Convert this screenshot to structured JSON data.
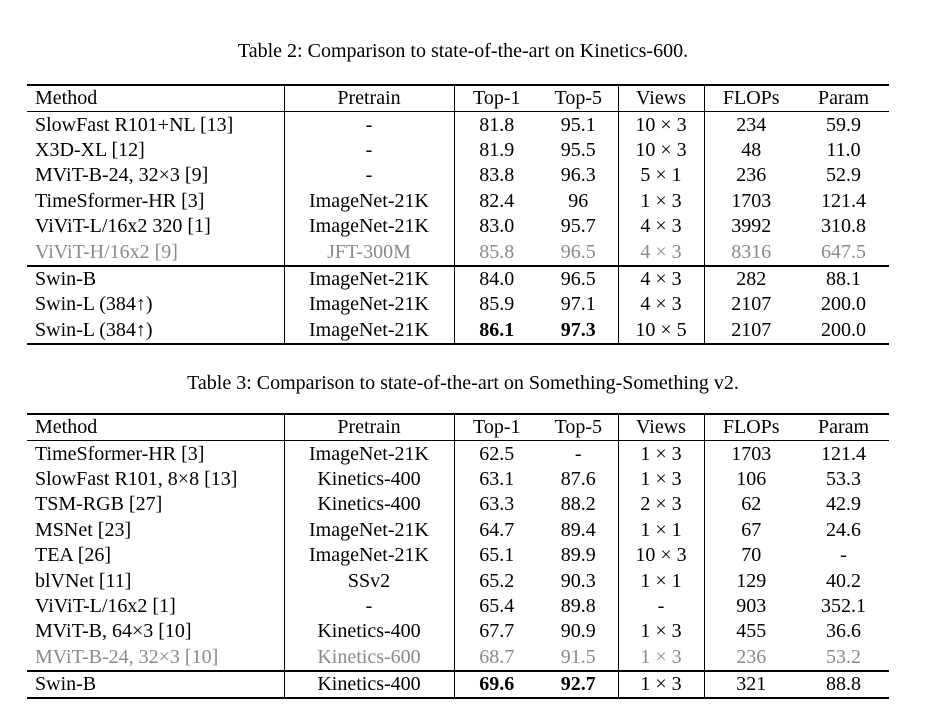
{
  "table1": {
    "caption": "Table 2: Comparison to state-of-the-art on Kinetics-600.",
    "headers": [
      "Method",
      "Pretrain",
      "Top-1",
      "Top-5",
      "Views",
      "FLOPs",
      "Param"
    ],
    "rows": [
      {
        "method": "SlowFast R101+NL [13]",
        "pretrain": "-",
        "top1": "81.8",
        "top5": "95.1",
        "views": "10 × 3",
        "flops": "234",
        "param": "59.9"
      },
      {
        "method": "X3D-XL [12]",
        "pretrain": "-",
        "top1": "81.9",
        "top5": "95.5",
        "views": "10 × 3",
        "flops": "48",
        "param": "11.0"
      },
      {
        "method": "MViT-B-24, 32×3 [9]",
        "pretrain": "-",
        "top1": "83.8",
        "top5": "96.3",
        "views": "5 × 1",
        "flops": "236",
        "param": "52.9"
      },
      {
        "method": "TimeSformer-HR [3]",
        "pretrain": "ImageNet-21K",
        "top1": "82.4",
        "top5": "96",
        "views": "1 × 3",
        "flops": "1703",
        "param": "121.4"
      },
      {
        "method": "ViViT-L/16x2 320 [1]",
        "pretrain": "ImageNet-21K",
        "top1": "83.0",
        "top5": "95.7",
        "views": "4 × 3",
        "flops": "3992",
        "param": "310.8"
      },
      {
        "method": "ViViT-H/16x2 [9]",
        "pretrain": "JFT-300M",
        "top1": "85.8",
        "top5": "96.5",
        "views": "4 × 3",
        "flops": "8316",
        "param": "647.5"
      },
      {
        "method": "Swin-B",
        "pretrain": "ImageNet-21K",
        "top1": "84.0",
        "top5": "96.5",
        "views": "4 × 3",
        "flops": "282",
        "param": "88.1"
      },
      {
        "method": "Swin-L (384↑)",
        "pretrain": "ImageNet-21K",
        "top1": "85.9",
        "top5": "97.1",
        "views": "4 × 3",
        "flops": "2107",
        "param": "200.0"
      },
      {
        "method": "Swin-L (384↑)",
        "pretrain": "ImageNet-21K",
        "top1": "86.1",
        "top5": "97.3",
        "views": "10 × 5",
        "flops": "2107",
        "param": "200.0"
      }
    ]
  },
  "table2": {
    "caption": "Table 3: Comparison to state-of-the-art on Something-Something v2.",
    "headers": [
      "Method",
      "Pretrain",
      "Top-1",
      "Top-5",
      "Views",
      "FLOPs",
      "Param"
    ],
    "rows": [
      {
        "method": "TimeSformer-HR [3]",
        "pretrain": "ImageNet-21K",
        "top1": "62.5",
        "top5": "-",
        "views": "1 × 3",
        "flops": "1703",
        "param": "121.4"
      },
      {
        "method": "SlowFast R101, 8×8 [13]",
        "pretrain": "Kinetics-400",
        "top1": "63.1",
        "top5": "87.6",
        "views": "1 × 3",
        "flops": "106",
        "param": "53.3"
      },
      {
        "method": "TSM-RGB [27]",
        "pretrain": "Kinetics-400",
        "top1": "63.3",
        "top5": "88.2",
        "views": "2 × 3",
        "flops": "62",
        "param": "42.9"
      },
      {
        "method": "MSNet [23]",
        "pretrain": "ImageNet-21K",
        "top1": "64.7",
        "top5": "89.4",
        "views": "1 × 1",
        "flops": "67",
        "param": "24.6"
      },
      {
        "method": "TEA [26]",
        "pretrain": "ImageNet-21K",
        "top1": "65.1",
        "top5": "89.9",
        "views": "10 × 3",
        "flops": "70",
        "param": "-"
      },
      {
        "method": "blVNet [11]",
        "pretrain": "SSv2",
        "top1": "65.2",
        "top5": "90.3",
        "views": "1 × 1",
        "flops": "129",
        "param": "40.2"
      },
      {
        "method": "ViViT-L/16x2 [1]",
        "pretrain": "-",
        "top1": "65.4",
        "top5": "89.8",
        "views": "-",
        "flops": "903",
        "param": "352.1"
      },
      {
        "method": "MViT-B, 64×3 [10]",
        "pretrain": "Kinetics-400",
        "top1": "67.7",
        "top5": "90.9",
        "views": "1 × 3",
        "flops": "455",
        "param": "36.6"
      },
      {
        "method": "MViT-B-24, 32×3 [10]",
        "pretrain": "Kinetics-600",
        "top1": "68.7",
        "top5": "91.5",
        "views": "1 × 3",
        "flops": "236",
        "param": "53.2"
      },
      {
        "method": "Swin-B",
        "pretrain": "Kinetics-400",
        "top1": "69.6",
        "top5": "92.7",
        "views": "1 × 3",
        "flops": "321",
        "param": "88.8"
      }
    ]
  }
}
